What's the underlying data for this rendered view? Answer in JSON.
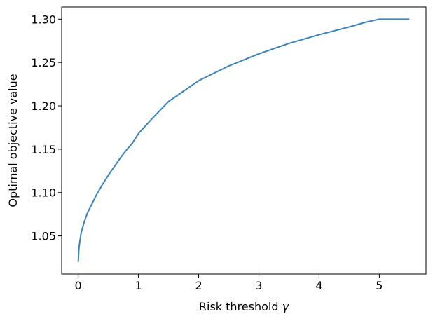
{
  "chart_data": {
    "type": "line",
    "xlabel": "Risk threshold",
    "xlabel_symbol": "γ",
    "ylabel": "Optimal objective value",
    "xlim": [
      -0.275,
      5.775
    ],
    "ylim": [
      1.006,
      1.314
    ],
    "grid": false,
    "x_ticks": [
      0,
      1,
      2,
      3,
      4,
      5
    ],
    "x_tick_labels": [
      "0",
      "1",
      "2",
      "3",
      "4",
      "5"
    ],
    "y_ticks": [
      1.05,
      1.1,
      1.15,
      1.2,
      1.25,
      1.3
    ],
    "y_tick_labels": [
      "1.05",
      "1.10",
      "1.15",
      "1.20",
      "1.25",
      "1.30"
    ],
    "series": [
      {
        "color": "#3a83bf",
        "x": [
          0.0,
          0.01,
          0.025,
          0.05,
          0.1,
          0.15,
          0.2,
          0.3,
          0.4,
          0.5,
          0.6,
          0.7,
          0.8,
          0.9,
          1.0,
          1.25,
          1.5,
          1.75,
          2.0,
          2.5,
          3.0,
          3.5,
          4.0,
          4.5,
          4.75,
          5.0,
          5.25,
          5.5
        ],
        "y": [
          1.02,
          1.034,
          1.043,
          1.054,
          1.066,
          1.076,
          1.083,
          1.097,
          1.109,
          1.12,
          1.13,
          1.14,
          1.149,
          1.157,
          1.168,
          1.187,
          1.205,
          1.217,
          1.229,
          1.246,
          1.26,
          1.272,
          1.282,
          1.291,
          1.296,
          1.3,
          1.3,
          1.3
        ]
      }
    ]
  }
}
